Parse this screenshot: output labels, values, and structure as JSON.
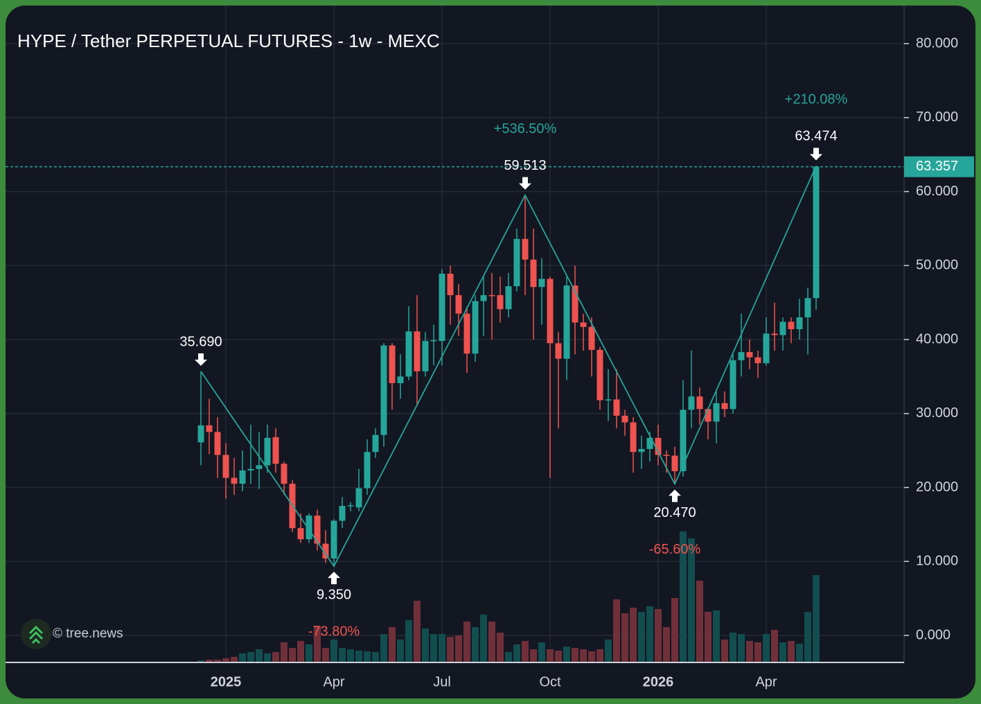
{
  "chart_data": {
    "type": "candlestick",
    "title": "HYPE / Tether PERPETUAL FUTURES - 1w - MEXC",
    "watermark": "© tree.news",
    "categories": [
      null,
      null,
      null,
      "2025",
      null,
      null,
      null,
      null,
      null,
      null,
      null,
      null,
      null,
      null,
      null,
      null,
      "Apr",
      null,
      null,
      null,
      null,
      null,
      null,
      null,
      null,
      null,
      null,
      null,
      null,
      "Jul",
      null,
      null,
      null,
      null,
      null,
      null,
      null,
      null,
      null,
      null,
      null,
      null,
      "Oct",
      null,
      null,
      null,
      null,
      null,
      null,
      null,
      null,
      null,
      null,
      null,
      null,
      "2026",
      null,
      null,
      null,
      null,
      null,
      null,
      null,
      null,
      null,
      null,
      null,
      null,
      "Apr",
      null,
      null,
      null,
      null,
      null,
      null
    ],
    "open": [
      26.1,
      28.4,
      27.5,
      24.4,
      21.3,
      20.5,
      22.3,
      22.5,
      23,
      26.8,
      23.2,
      20.5,
      14.5,
      13,
      16.2,
      12.4,
      10.4,
      15.5,
      17.5,
      17.3,
      19.9,
      24.8,
      27.1,
      39.2,
      34.1,
      35,
      41.1,
      35.7,
      39.8,
      39.8,
      48.9,
      46,
      43.5,
      38.1,
      45.2,
      46,
      46,
      44.1,
      47.2,
      53.6,
      50.8,
      47.1,
      48.2,
      39.5,
      37.4,
      47.3,
      42.3,
      41.7,
      38.6,
      31.8,
      31.9,
      29.7,
      28.8,
      24.8,
      25.2,
      26.7,
      24.4,
      24.3,
      22.2,
      30.5,
      32.3,
      30.6,
      28.9,
      31.4,
      30.6,
      37.2,
      38.3,
      37.6,
      36.8,
      40.8,
      40.6,
      42.4,
      41.4,
      43,
      45.6
    ],
    "high": [
      35.69,
      32,
      29.5,
      26,
      24,
      25,
      28.5,
      27.5,
      28.5,
      28,
      23.5,
      21,
      16.5,
      16.5,
      17,
      14.2,
      15.7,
      18.7,
      18,
      22.5,
      26.5,
      28,
      39.5,
      39.5,
      38,
      44.5,
      46,
      41,
      42,
      49.5,
      50,
      47.5,
      44.5,
      46,
      48.5,
      49,
      48.5,
      49,
      55,
      59.513,
      55,
      51,
      48.5,
      41,
      48.5,
      50,
      43.5,
      43,
      39,
      36,
      36,
      30.5,
      29.5,
      27,
      27.5,
      28.5,
      25,
      25.5,
      34.5,
      38.5,
      33.5,
      30.8,
      33,
      33,
      38,
      43.5,
      40,
      38.5,
      43,
      45,
      43,
      43,
      45.5,
      47,
      63.474
    ],
    "low": [
      23,
      24.5,
      21.3,
      18.5,
      19,
      19.5,
      20.5,
      19.8,
      22,
      22,
      19,
      14,
      12.5,
      12.5,
      11.5,
      9.8,
      9.35,
      14.5,
      16.8,
      16.8,
      19,
      24,
      25.5,
      30.5,
      32,
      34.5,
      31,
      35,
      36.5,
      36.5,
      42,
      40.5,
      35.5,
      37,
      40.5,
      40,
      42.3,
      43,
      46.5,
      46,
      40,
      42,
      21.3,
      28,
      34.5,
      38,
      38.5,
      35,
      30.5,
      29,
      28,
      27,
      22,
      22.5,
      23.5,
      23,
      22,
      20.47,
      21.5,
      28,
      28.5,
      26.5,
      26,
      29.5,
      30,
      35,
      36,
      34.8,
      36.5,
      38.5,
      38.5,
      39.5,
      40,
      38,
      44
    ],
    "close": [
      28.4,
      27.5,
      24.4,
      21.3,
      20.5,
      22.3,
      22.5,
      23,
      26.7,
      23.2,
      20.5,
      14.5,
      13,
      16.2,
      12.4,
      10.4,
      15.5,
      17.5,
      17.6,
      19.9,
      24.8,
      27.1,
      39.2,
      34.1,
      35,
      41.1,
      35.7,
      39.8,
      39.9,
      48.9,
      46,
      43.5,
      38.1,
      45.2,
      46,
      45.9,
      44.1,
      47.2,
      53.6,
      50.8,
      47.1,
      48.2,
      39.5,
      37.4,
      47.3,
      42.3,
      41.7,
      38.6,
      31.8,
      31.9,
      29.7,
      28.8,
      24.8,
      25.2,
      26.7,
      24.4,
      24.3,
      22.2,
      30.5,
      32.3,
      30.6,
      28.9,
      31.4,
      30.6,
      37.2,
      38.3,
      37.6,
      36.8,
      40.8,
      40.6,
      42.4,
      41.4,
      43,
      45.6,
      63.357
    ],
    "volume": [
      2,
      3,
      3,
      5,
      7,
      12,
      14,
      18,
      12,
      14,
      28,
      20,
      30,
      25,
      52,
      20,
      32,
      20,
      18,
      16,
      15,
      14,
      40,
      50,
      32,
      60,
      88,
      48,
      40,
      40,
      36,
      38,
      58,
      50,
      68,
      58,
      42,
      14,
      25,
      30,
      18,
      28,
      18,
      16,
      22,
      20,
      18,
      15,
      18,
      32,
      90,
      70,
      78,
      72,
      80,
      76,
      50,
      92,
      188,
      178,
      117,
      72,
      74,
      32,
      42,
      40,
      30,
      28,
      40,
      46,
      28,
      30,
      26,
      72,
      125
    ],
    "up_color": "#26a69a",
    "down_color": "#ef5350",
    "volume_up_color": "#124d4f",
    "volume_down_color": "#70303a",
    "ylim": [
      -3.56,
      85.15
    ],
    "yticks": [
      {
        "value": 0,
        "label": "0.000"
      },
      {
        "value": 10,
        "label": "10.000"
      },
      {
        "value": 20,
        "label": "20.000"
      },
      {
        "value": 30,
        "label": "30.000"
      },
      {
        "value": 40,
        "label": "40.000"
      },
      {
        "value": 50,
        "label": "50.000"
      },
      {
        "value": 60,
        "label": "60.000"
      },
      {
        "value": 70,
        "label": "70.000"
      },
      {
        "value": 80,
        "label": "80.000"
      }
    ],
    "grid": true,
    "last_price": {
      "value": 63.357,
      "label": "63.357"
    },
    "pivots": [
      {
        "index": 0,
        "value": 35.69,
        "label": "35.690"
      },
      {
        "index": 16,
        "value": 9.35,
        "label": "9.350",
        "change": {
          "value": -73.8,
          "label": "-73.80%"
        }
      },
      {
        "index": 39,
        "value": 59.513,
        "label": "59.513",
        "change": {
          "value": 536.5,
          "label": "+536.50%"
        }
      },
      {
        "index": 57,
        "value": 20.47,
        "label": "20.470",
        "change": {
          "value": -65.6,
          "label": "-65.60%"
        }
      },
      {
        "index": 74,
        "value": 63.474,
        "label": "63.474",
        "change": {
          "value": 210.08,
          "label": "+210.08%"
        }
      }
    ]
  }
}
